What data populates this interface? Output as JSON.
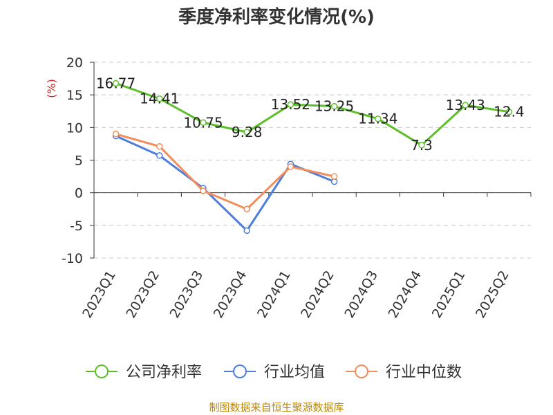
{
  "chart_data": {
    "type": "line",
    "title": "季度净利率变化情况(%)",
    "ylabel": "(%)",
    "xlabel": "",
    "categories": [
      "2023Q1",
      "2023Q2",
      "2023Q3",
      "2023Q4",
      "2024Q1",
      "2024Q2",
      "2024Q3",
      "2024Q4",
      "2025Q1",
      "2025Q2"
    ],
    "ylim": [
      -10,
      20
    ],
    "yticks": [
      -10,
      -5,
      0,
      5,
      10,
      15,
      20
    ],
    "grid": true,
    "legend_position": "bottom",
    "series": [
      {
        "name": "公司净利率",
        "color": "#5cbf2a",
        "values": [
          16.77,
          14.41,
          10.75,
          9.28,
          13.52,
          13.25,
          11.34,
          7.3,
          13.43,
          12.4
        ],
        "labels": [
          "16.77",
          "14.41",
          "10.75",
          "9.28",
          "13.52",
          "13.25",
          "11.34",
          "7.3",
          "13.43",
          "12.4"
        ]
      },
      {
        "name": "行业均值",
        "color": "#4e7ddc",
        "values": [
          8.7,
          5.7,
          0.7,
          -5.8,
          4.4,
          1.7,
          null,
          null,
          null,
          null
        ]
      },
      {
        "name": "行业中位数",
        "color": "#f28c5a",
        "values": [
          9.0,
          7.1,
          0.3,
          -2.5,
          4.0,
          2.5,
          null,
          null,
          null,
          null
        ]
      }
    ]
  },
  "source": "制图数据来自恒生聚源数据库"
}
